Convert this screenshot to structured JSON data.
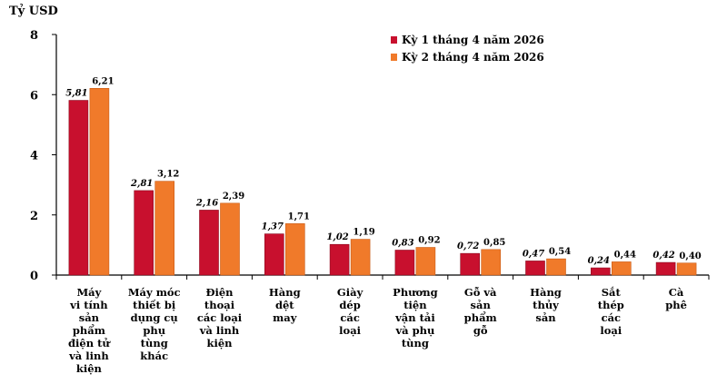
{
  "chart_data": {
    "type": "bar",
    "ylabel": "Tỷ USD",
    "ylim": [
      0,
      8
    ],
    "yticks": [
      "0",
      "2",
      "4",
      "6",
      "8"
    ],
    "grid": false,
    "legend_position": "top-right",
    "categories": [
      [
        "Máy",
        "vi tính",
        "sản",
        "phẩm",
        "điện tử",
        "và linh",
        "kiện"
      ],
      [
        "Máy móc",
        "thiết bị",
        "dụng cụ",
        "phụ",
        "tùng",
        "khác"
      ],
      [
        "Điện",
        "thoại",
        "các loại",
        "và linh",
        "kiện"
      ],
      [
        "Hàng",
        "dệt",
        "may"
      ],
      [
        "Giày",
        "dép",
        "các",
        "loại"
      ],
      [
        "Phương",
        "tiện",
        "vận tải",
        "và phụ",
        "tùng"
      ],
      [
        "Gỗ và",
        "sản",
        "phẩm",
        "gỗ"
      ],
      [
        "Hàng",
        "thủy",
        "sản"
      ],
      [
        "Sắt",
        "thép",
        "các",
        "loại"
      ],
      [
        "Cà",
        "phê"
      ]
    ],
    "series": [
      {
        "name": "Kỳ 1 tháng 4 năm 2026",
        "color": "#c8102e",
        "values": [
          5.81,
          2.81,
          2.16,
          1.37,
          1.02,
          0.83,
          0.72,
          0.47,
          0.24,
          0.42
        ],
        "labels": [
          "5,81",
          "2,81",
          "2,16",
          "1,37",
          "1,02",
          "0,83",
          "0,72",
          "0,47",
          "0,24",
          "0,42"
        ]
      },
      {
        "name": "Kỳ 2 tháng 4 năm 2026",
        "color": "#f07a2a",
        "values": [
          6.21,
          3.12,
          2.39,
          1.71,
          1.19,
          0.92,
          0.85,
          0.54,
          0.44,
          0.4
        ],
        "labels": [
          "6,21",
          "3,12",
          "2,39",
          "1,71",
          "1,19",
          "0,92",
          "0,85",
          "0,54",
          "0,44",
          "0,40"
        ]
      }
    ]
  }
}
